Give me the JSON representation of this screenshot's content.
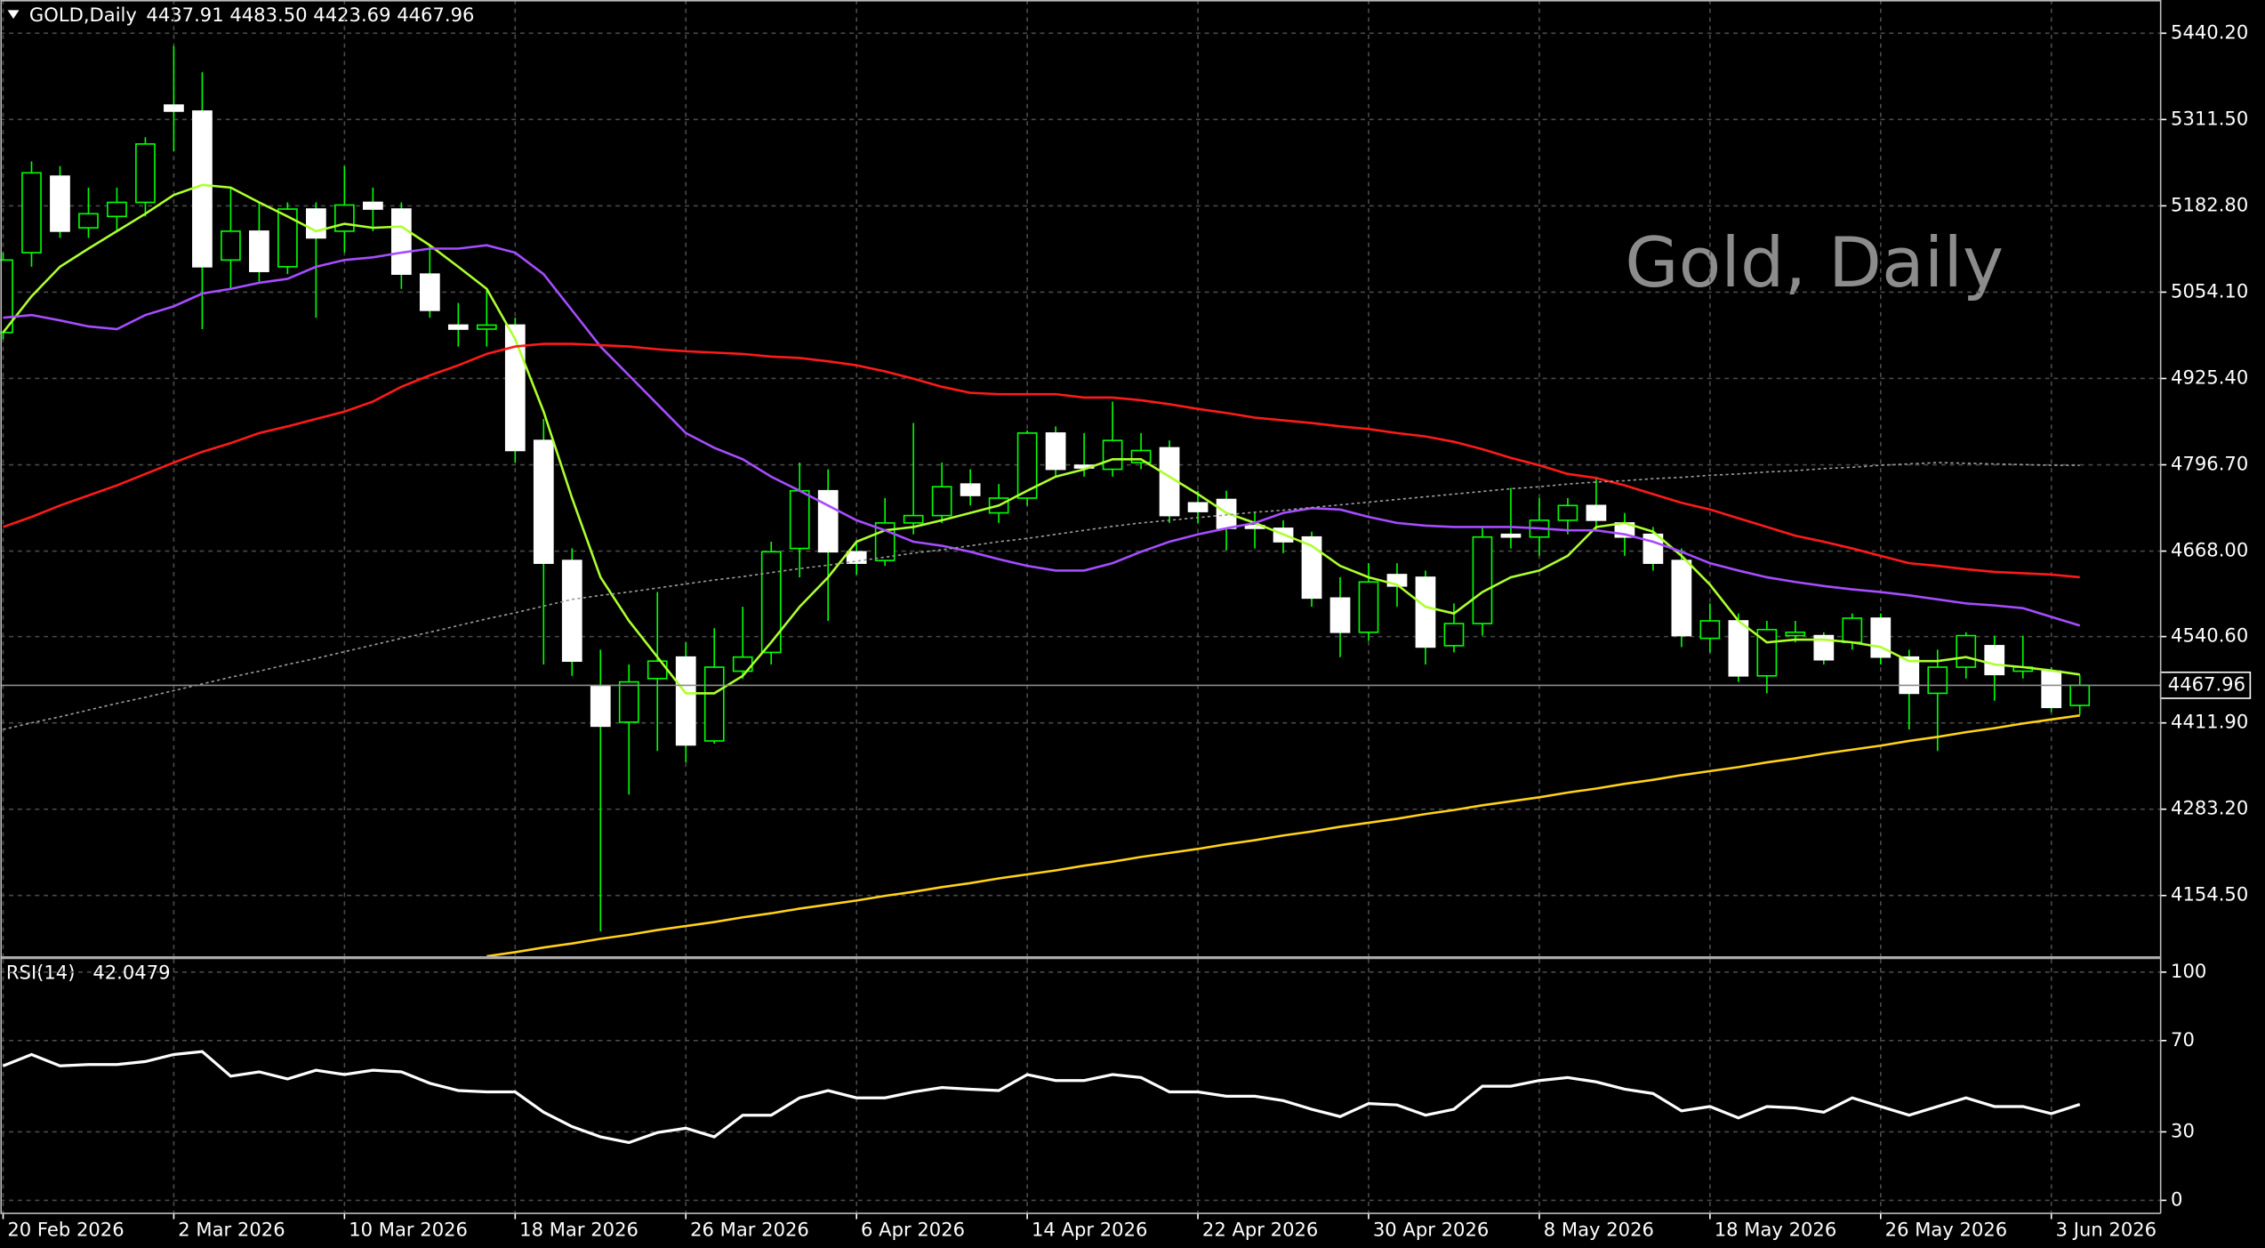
{
  "chart_data": [
    {
      "type": "candlestick",
      "symbol": "GOLD,Daily",
      "header_prices": "4437.91 4483.50 4423.69 4467.96",
      "watermark": "Gold, Daily",
      "categories": [
        "20 Feb 2026",
        null,
        null,
        null,
        null,
        null,
        "2 Mar 2026",
        null,
        null,
        null,
        null,
        null,
        "10 Mar 2026",
        null,
        null,
        null,
        null,
        null,
        "18 Mar 2026",
        null,
        null,
        null,
        null,
        null,
        "26 Mar 2026",
        null,
        null,
        null,
        null,
        null,
        "6 Apr 2026",
        null,
        null,
        null,
        null,
        null,
        "14 Apr 2026",
        null,
        null,
        null,
        null,
        null,
        "22 Apr 2026",
        null,
        null,
        null,
        null,
        null,
        "30 Apr 2026",
        null,
        null,
        null,
        null,
        null,
        "8 May 2026",
        null,
        null,
        null,
        null,
        null,
        "18 May 2026",
        null,
        null,
        null,
        null,
        null,
        "26 May 2026",
        null,
        null,
        null,
        null,
        null,
        "3 Jun 2026",
        null
      ],
      "open": [
        4994,
        5113,
        5227,
        5150,
        5167,
        5188,
        5333,
        5324,
        5102,
        5145,
        5092,
        5178,
        5145,
        5188,
        5178,
        5081,
        5005,
        4999,
        5005,
        4833,
        4654,
        4467,
        4413,
        4478,
        4510,
        4385,
        4489,
        4517,
        4672,
        4758,
        4667,
        4654,
        4710,
        4721,
        4768,
        4725,
        4747,
        4844,
        4796,
        4790,
        4800,
        4822,
        4740,
        4745,
        4706,
        4702,
        4689,
        4598,
        4547,
        4633,
        4629,
        4527,
        4560,
        4693,
        4689,
        4714,
        4736,
        4710,
        4693,
        4654,
        4538,
        4564,
        4482,
        4542,
        4542,
        4532,
        4568,
        4510,
        4456,
        4495,
        4527,
        4489,
        4489,
        4437.91
      ],
      "high": [
        5113,
        5249,
        5242,
        5210,
        5210,
        5285,
        5421,
        5382,
        5210,
        5188,
        5188,
        5188,
        5242,
        5210,
        5188,
        5124,
        5038,
        5059,
        5016,
        4865,
        4672,
        4521,
        4499,
        4607,
        4532,
        4553,
        4585,
        4682,
        4800,
        4790,
        4682,
        4747,
        4859,
        4800,
        4790,
        4768,
        4848,
        4854,
        4844,
        4891,
        4844,
        4833,
        4758,
        4758,
        4725,
        4714,
        4697,
        4629,
        4650,
        4650,
        4639,
        4590,
        4704,
        4762,
        4747,
        4747,
        4779,
        4725,
        4704,
        4672,
        4590,
        4575,
        4564,
        4564,
        4547,
        4575,
        4575,
        4521,
        4521,
        4547,
        4542,
        4542,
        4495,
        4483.5
      ],
      "low": [
        4984,
        5092,
        5135,
        5135,
        5145,
        5167,
        5264,
        4999,
        5059,
        5070,
        5081,
        5016,
        5113,
        5145,
        5059,
        5016,
        4973,
        4973,
        4800,
        4499,
        4482,
        4101,
        4305,
        4370,
        4353,
        4381,
        4478,
        4499,
        4629,
        4564,
        4633,
        4646,
        4693,
        4710,
        4736,
        4710,
        4736,
        4779,
        4779,
        4779,
        4790,
        4710,
        4710,
        4669,
        4672,
        4665,
        4585,
        4510,
        4534,
        4585,
        4499,
        4517,
        4542,
        4672,
        4661,
        4693,
        4697,
        4661,
        4639,
        4525,
        4517,
        4473,
        4456,
        4532,
        4499,
        4521,
        4499,
        4402,
        4370,
        4478,
        4445,
        4478,
        4428,
        4423.69
      ],
      "close": [
        5102,
        5232,
        5145,
        5171,
        5188,
        5275,
        5324,
        5092,
        5145,
        5085,
        5178,
        5135,
        5184,
        5178,
        5081,
        5027,
        4999,
        5005,
        4818,
        4650,
        4504,
        4407,
        4473,
        4504,
        4379,
        4495,
        4510,
        4667,
        4758,
        4667,
        4650,
        4710,
        4721,
        4764,
        4751,
        4747,
        4844,
        4790,
        4792,
        4833,
        4818,
        4721,
        4727,
        4702,
        4702,
        4682,
        4598,
        4547,
        4622,
        4616,
        4525,
        4560,
        4689,
        4689,
        4714,
        4736,
        4714,
        4689,
        4650,
        4542,
        4564,
        4482,
        4551,
        4547,
        4506,
        4568,
        4510,
        4456,
        4495,
        4542,
        4484,
        4495,
        4435,
        4467.96
      ],
      "up_color": "#00ff00",
      "down_color": "#ffffff",
      "wick_color": "#00ff00",
      "ylim": [
        4064,
        5489.7
      ],
      "yticks": [
        {
          "value": 5440.2,
          "label": "5440.20"
        },
        {
          "value": 5311.5,
          "label": "5311.50"
        },
        {
          "value": 5182.8,
          "label": "5182.80"
        },
        {
          "value": 5054.1,
          "label": "5054.10"
        },
        {
          "value": 4925.4,
          "label": "4925.40"
        },
        {
          "value": 4796.7,
          "label": "4796.70"
        },
        {
          "value": 4668,
          "label": "4668.00"
        },
        {
          "value": 4540.6,
          "label": "4540.60"
        },
        {
          "value": 4411.9,
          "label": "4411.90"
        },
        {
          "value": 4283.2,
          "label": "4283.20"
        },
        {
          "value": 4154.5,
          "label": "4154.50"
        }
      ],
      "grid": true,
      "series": [
        {
          "color": "#adff2f",
          "values": [
            4994,
            5048,
            5092,
            5119,
            5145,
            5171,
            5199,
            5214,
            5210,
            5188,
            5167,
            5145,
            5156,
            5150,
            5152,
            5124,
            5092,
            5059,
            4984,
            4876,
            4747,
            4629,
            4564,
            4510,
            4456,
            4456,
            4482,
            4532,
            4585,
            4629,
            4682,
            4699,
            4704,
            4714,
            4725,
            4736,
            4758,
            4779,
            4790,
            4805,
            4805,
            4779,
            4753,
            4725,
            4710,
            4693,
            4676,
            4646,
            4629,
            4618,
            4585,
            4575,
            4607,
            4629,
            4639,
            4661,
            4704,
            4710,
            4697,
            4661,
            4618,
            4564,
            4532,
            4536,
            4536,
            4532,
            4525,
            4504,
            4504,
            4510,
            4499,
            4495,
            4490,
            4484
          ]
        },
        {
          "color": "#a64dff",
          "values": [
            5016,
            5020,
            5012,
            5003,
            4999,
            5020,
            5033,
            5052,
            5059,
            5068,
            5074,
            5092,
            5102,
            5106,
            5113,
            5119,
            5119,
            5124,
            5113,
            5081,
            5027,
            4973,
            4930,
            4887,
            4844,
            4822,
            4805,
            4779,
            4758,
            4736,
            4714,
            4699,
            4682,
            4676,
            4667,
            4656,
            4646,
            4639,
            4639,
            4650,
            4667,
            4682,
            4693,
            4702,
            4710,
            4725,
            4732,
            4730,
            4719,
            4710,
            4706,
            4704,
            4704,
            4704,
            4702,
            4699,
            4699,
            4693,
            4682,
            4667,
            4650,
            4639,
            4629,
            4622,
            4616,
            4611,
            4607,
            4602,
            4596,
            4590,
            4587,
            4583,
            4570,
            4557
          ]
        },
        {
          "color": "#ff1a1a",
          "values": [
            4704,
            4719,
            4736,
            4751,
            4766,
            4783,
            4800,
            4816,
            4829,
            4844,
            4854,
            4865,
            4876,
            4891,
            4913,
            4930,
            4945,
            4962,
            4973,
            4977,
            4977,
            4975,
            4973,
            4969,
            4966,
            4964,
            4962,
            4958,
            4956,
            4951,
            4945,
            4936,
            4925,
            4913,
            4904,
            4902,
            4902,
            4902,
            4897,
            4897,
            4893,
            4887,
            4880,
            4874,
            4867,
            4863,
            4859,
            4854,
            4850,
            4844,
            4839,
            4831,
            4820,
            4807,
            4796,
            4783,
            4777,
            4766,
            4753,
            4740,
            4730,
            4717,
            4704,
            4691,
            4682,
            4672,
            4661,
            4650,
            4646,
            4641,
            4637,
            4635,
            4633,
            4629
          ]
        },
        {
          "color": "#ffd21a",
          "values": [
            null,
            null,
            null,
            null,
            null,
            null,
            null,
            null,
            null,
            null,
            null,
            null,
            null,
            null,
            null,
            null,
            null,
            4064,
            4070,
            4077,
            4083,
            4090,
            4096,
            4103,
            4109,
            4115,
            4122,
            4128,
            4135,
            4141,
            4147,
            4154,
            4160,
            4167,
            4173,
            4180,
            4186,
            4192,
            4199,
            4205,
            4212,
            4218,
            4224,
            4231,
            4237,
            4244,
            4250,
            4257,
            4263,
            4269,
            4276,
            4282,
            4289,
            4295,
            4301,
            4308,
            4314,
            4321,
            4327,
            4334,
            4340,
            4346,
            4353,
            4359,
            4366,
            4372,
            4378,
            4385,
            4391,
            4398,
            4404,
            4411,
            4417,
            4423
          ]
        },
        {
          "color": "#9a9a9a",
          "dashed": true,
          "values": [
            4402,
            4412,
            4421,
            4431,
            4441,
            4450,
            4460,
            4470,
            4480,
            4489,
            4499,
            4508,
            4518,
            4528,
            4538,
            4547,
            4557,
            4567,
            4576,
            4586,
            4596,
            4602,
            4607,
            4613,
            4619,
            4625,
            4630,
            4636,
            4642,
            4647,
            4653,
            4659,
            4665,
            4670,
            4676,
            4682,
            4687,
            4693,
            4699,
            4705,
            4710,
            4714,
            4718,
            4722,
            4726,
            4729,
            4733,
            4737,
            4741,
            4745,
            4749,
            4753,
            4757,
            4761,
            4764,
            4768,
            4771,
            4773,
            4776,
            4778,
            4781,
            4783,
            4786,
            4788,
            4791,
            4793,
            4796,
            4798,
            4800,
            4799,
            4798,
            4797,
            4796,
            4796
          ]
        }
      ]
    },
    {
      "type": "line",
      "title": "RSI(14)",
      "color": "#ffffff",
      "values": [
        58.9,
        63.9,
        58.9,
        59.5,
        59.5,
        60.8,
        63.9,
        65.2,
        54.4,
        56.3,
        53.2,
        57.0,
        55.1,
        57.0,
        56.3,
        51.3,
        48.1,
        47.5,
        47.5,
        38.6,
        32.3,
        27.8,
        25.3,
        29.7,
        31.6,
        27.8,
        37.3,
        37.3,
        44.9,
        48.1,
        44.9,
        44.9,
        47.5,
        49.4,
        48.7,
        48.1,
        55.1,
        52.5,
        52.5,
        55.1,
        53.8,
        47.5,
        47.5,
        45.6,
        45.6,
        43.7,
        39.9,
        36.7,
        42.4,
        41.8,
        37.3,
        39.9,
        50.0,
        50.0,
        52.5,
        53.8,
        51.9,
        48.7,
        46.8,
        39.2,
        41.1,
        36.1,
        41.1,
        40.5,
        38.6,
        44.9,
        41.1,
        37.3,
        41.1,
        44.9,
        41.1,
        41.1,
        38.0,
        42.0479
      ],
      "ylim": [
        -5.7,
        105.7
      ],
      "yticks": [
        100,
        70,
        30,
        0
      ],
      "grid": true
    }
  ]
}
